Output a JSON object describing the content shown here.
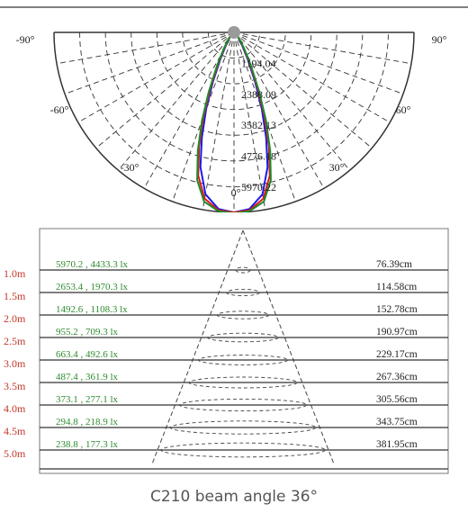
{
  "colors": {
    "frame": "#555555",
    "grid": "#333333",
    "red": "#e01a1a",
    "green": "#1c8a2a",
    "blue": "#1a1ae8",
    "label_green": "#2e8b2e",
    "label_red": "#c0392b"
  },
  "chart_data": [
    {
      "type": "polar",
      "angle_labels": [
        "-90°",
        "-60°",
        "-30°",
        "0°",
        "30°",
        "60°",
        "90°"
      ],
      "radial_labels": [
        "1194.04",
        "2388.09",
        "3582.13",
        "4776.18",
        "5970.22"
      ],
      "rmax": 5970.22,
      "series": [
        {
          "color": "blue",
          "points": [
            [
              0,
              5970
            ],
            [
              5,
              5880
            ],
            [
              10,
              5450
            ],
            [
              14,
              4600
            ],
            [
              17,
              3650
            ],
            [
              20,
              2700
            ],
            [
              23,
              1800
            ],
            [
              27,
              1000
            ],
            [
              32,
              500
            ],
            [
              40,
              220
            ],
            [
              55,
              80
            ],
            [
              75,
              20
            ],
            [
              90,
              0
            ]
          ]
        },
        {
          "color": "red",
          "points": [
            [
              0,
              5970
            ],
            [
              5,
              5920
            ],
            [
              10,
              5600
            ],
            [
              14,
              4900
            ],
            [
              17,
              3950
            ],
            [
              20,
              2950
            ],
            [
              23,
              2000
            ],
            [
              27,
              1150
            ],
            [
              32,
              580
            ],
            [
              40,
              260
            ],
            [
              55,
              90
            ],
            [
              75,
              25
            ],
            [
              90,
              0
            ]
          ]
        },
        {
          "color": "green",
          "points": [
            [
              0,
              6000
            ],
            [
              5,
              5950
            ],
            [
              10,
              5700
            ],
            [
              14,
              5050
            ],
            [
              17,
              4100
            ],
            [
              20,
              3100
            ],
            [
              23,
              2150
            ],
            [
              27,
              1250
            ],
            [
              32,
              640
            ],
            [
              40,
              280
            ],
            [
              55,
              95
            ],
            [
              75,
              25
            ],
            [
              90,
              0
            ]
          ]
        }
      ]
    },
    {
      "type": "table",
      "heights": [
        "1.0m",
        "1.5m",
        "2.0m",
        "2.5m",
        "3.0m",
        "3.5m",
        "4.0m",
        "4.5m",
        "5.0m"
      ],
      "illuminance": [
        "5970.2 , 4433.3 lx",
        "2653.4 , 1970.3 lx",
        "1492.6 , 1108.3 lx",
        "955.2 , 709.3 lx",
        "663.4 , 492.6 lx",
        "487.4 , 361.9 lx",
        "373.1 , 277.1 lx",
        "294.8 , 218.9 lx",
        "238.8 , 177.3 lx"
      ],
      "diameters": [
        "76.39cm",
        "114.58cm",
        "152.78cm",
        "190.97cm",
        "229.17cm",
        "267.36cm",
        "305.56cm",
        "343.75cm",
        "381.95cm"
      ]
    }
  ],
  "caption": "C210 beam angle 36°"
}
